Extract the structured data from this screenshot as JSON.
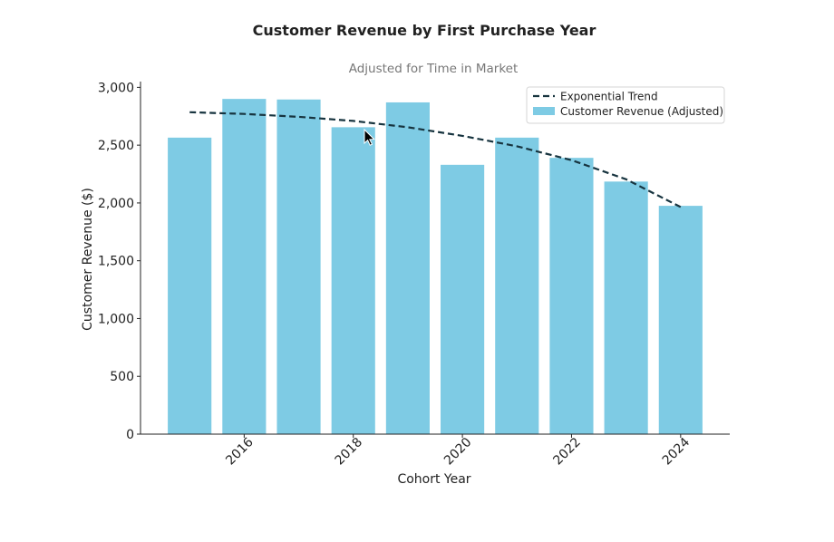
{
  "chart_data": {
    "type": "bar",
    "title": "Customer Revenue by First Purchase Year",
    "subtitle": "Adjusted for Time in Market",
    "xlabel": "Cohort Year",
    "ylabel": "Customer Revenue ($)",
    "x": [
      2015,
      2016,
      2017,
      2018,
      2019,
      2020,
      2021,
      2022,
      2023,
      2024
    ],
    "xticks": [
      2016,
      2018,
      2020,
      2022,
      2024
    ],
    "xlim": [
      2014.1,
      2024.9
    ],
    "ylim": [
      0,
      3050
    ],
    "yticks": [
      0,
      500,
      1000,
      1500,
      2000,
      2500,
      3000
    ],
    "ytick_labels": [
      "0",
      "500",
      "1,000",
      "1,500",
      "2,000",
      "2,500",
      "3,000"
    ],
    "series": [
      {
        "name": "Customer Revenue (Adjusted)",
        "type": "bar",
        "color": "#7ecbe4",
        "values": [
          2565,
          2900,
          2895,
          2655,
          2870,
          2330,
          2565,
          2390,
          2185,
          1975
        ]
      },
      {
        "name": "Exponential Trend",
        "type": "line",
        "style": "dashed",
        "color": "#17343f",
        "x": [
          2015,
          2016,
          2017,
          2018,
          2019,
          2020,
          2021,
          2022,
          2023,
          2024
        ],
        "values": [
          2785,
          2770,
          2745,
          2710,
          2655,
          2580,
          2490,
          2370,
          2205,
          1965
        ]
      }
    ],
    "legend": {
      "position": "top-right",
      "entries": [
        "Exponential Trend",
        "Customer Revenue (Adjusted)"
      ]
    },
    "grid": false
  }
}
